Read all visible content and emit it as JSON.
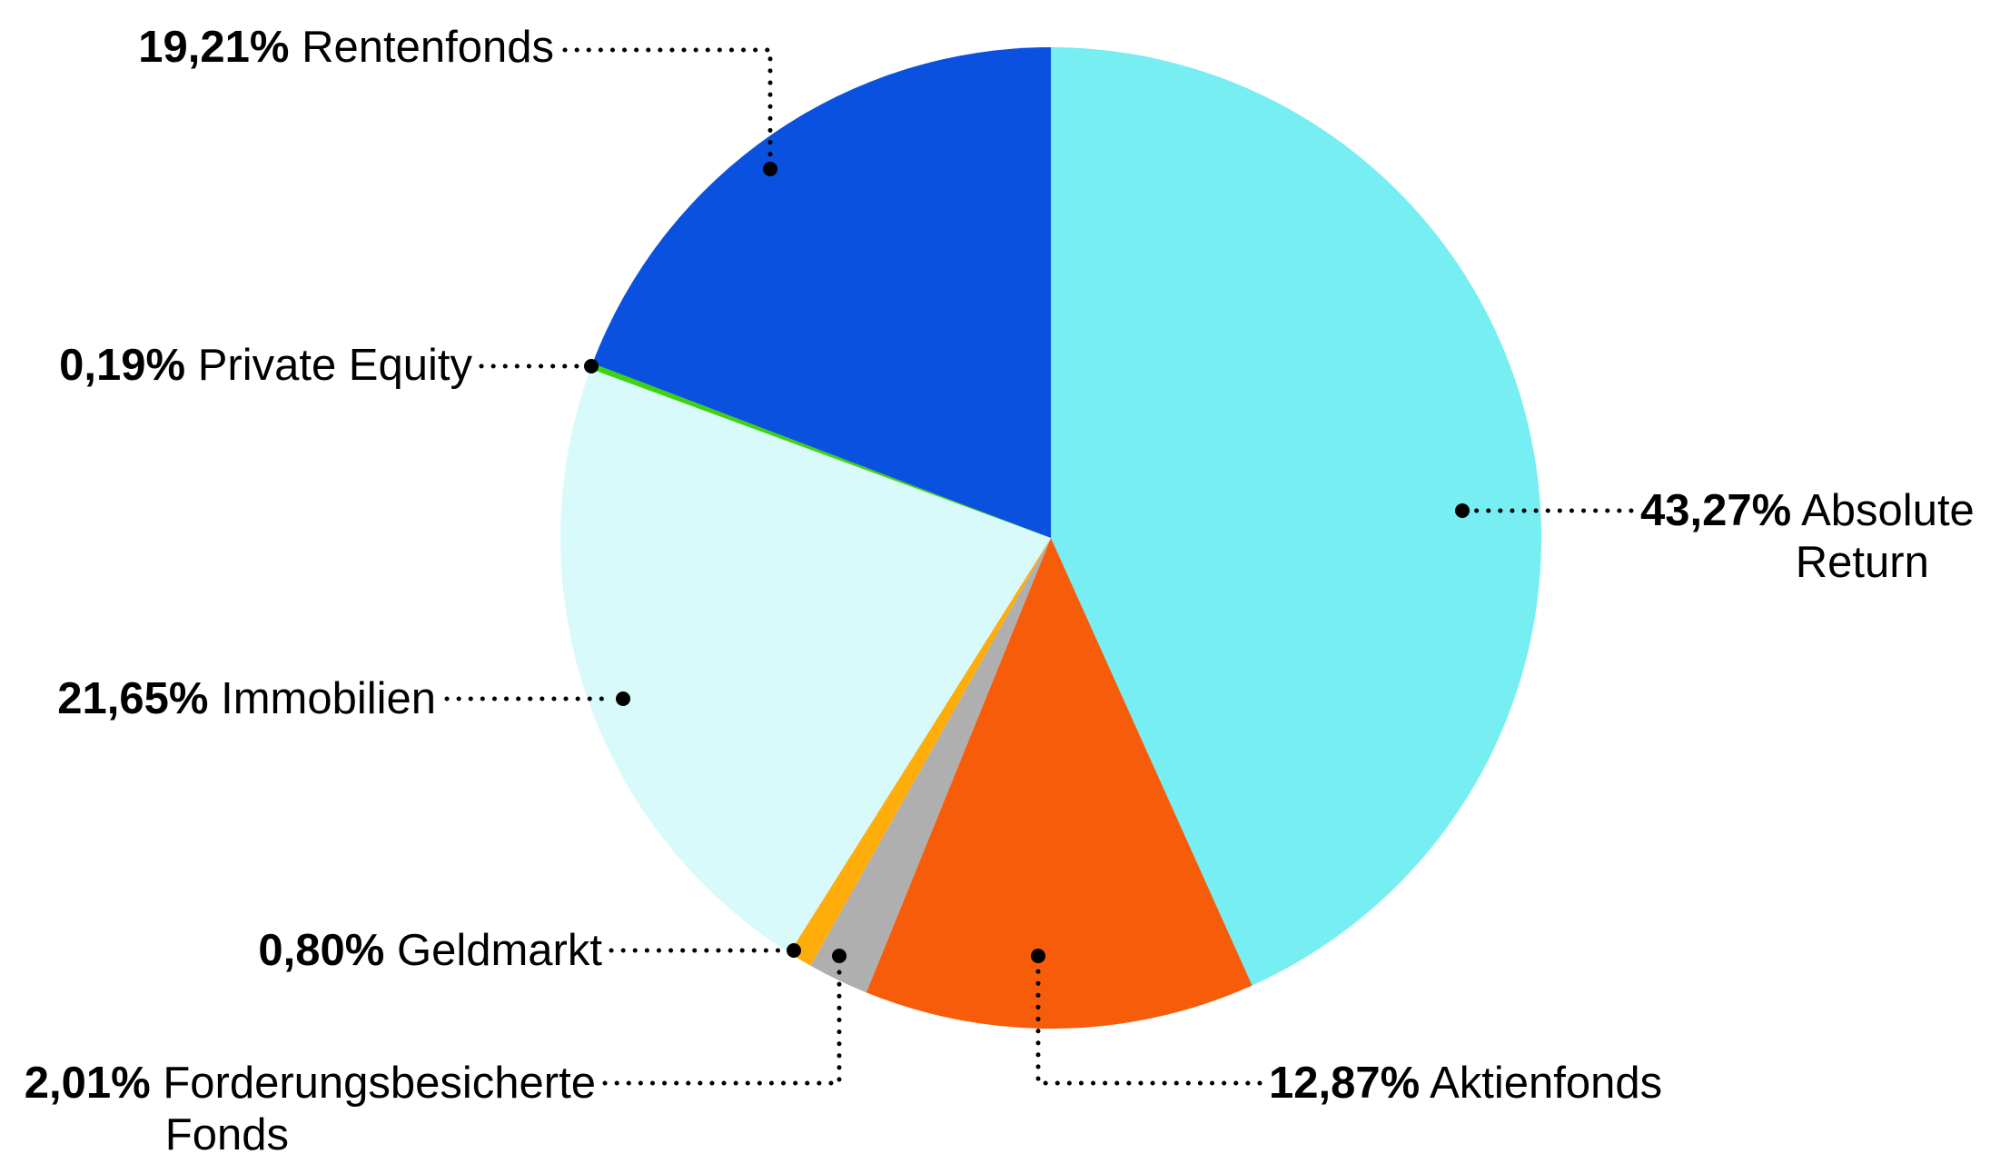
{
  "chart_data": {
    "type": "pie",
    "title": "",
    "start_angle_deg": 0,
    "direction": "clockwise",
    "background": "#FFFFFF",
    "text_color": "#000000",
    "legend_position": "callout-labels",
    "slices": [
      {
        "label": "Absolute Return",
        "value": 43.27,
        "display": "43,27%",
        "color": "#76EEF2"
      },
      {
        "label": "Aktienfonds",
        "value": 12.87,
        "display": "12,87%",
        "color": "#F75C0A"
      },
      {
        "label": "Forderungsbesicherte Fonds",
        "value": 2.01,
        "display": "2,01%",
        "color": "#AFAFAF"
      },
      {
        "label": "Geldmarkt",
        "value": 0.8,
        "display": "0,80%",
        "color": "#FFAD0A"
      },
      {
        "label": "Immobilien",
        "value": 21.65,
        "display": "21,65%",
        "color": "#D9FAFA"
      },
      {
        "label": "Private Equity",
        "value": 0.19,
        "display": "0,19%",
        "color": "#3FD30F"
      },
      {
        "label": "Rentenfonds",
        "value": 19.21,
        "display": "19,21%",
        "color": "#0A51E0"
      }
    ]
  },
  "callouts": {
    "rentenfonds": {
      "percent": "19,21%",
      "name": "Rentenfonds"
    },
    "private_equity": {
      "percent": "0,19%",
      "name": "Private Equity"
    },
    "immobilien": {
      "percent": "21,65%",
      "name": "Immobilien"
    },
    "geldmarkt": {
      "percent": "0,80%",
      "name": "Geldmarkt"
    },
    "forderungsbesicherte_fonds": {
      "percent": "2,01%",
      "name_line1": "Forderungsbesicherte",
      "name_line2": "Fonds"
    },
    "aktienfonds": {
      "percent": "12,87%",
      "name": "Aktienfonds"
    },
    "absolute_return": {
      "percent": "43,27%",
      "name_line1": "Absolute",
      "name_line2": "Return"
    }
  }
}
